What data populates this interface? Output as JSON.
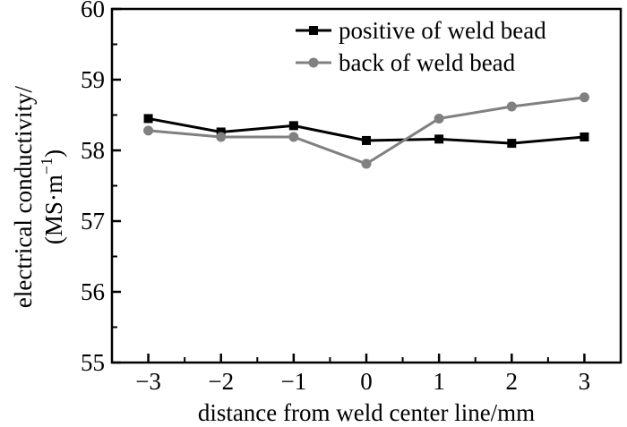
{
  "chart_data": {
    "type": "line",
    "x": [
      -3,
      -2,
      -1,
      0,
      1,
      2,
      3
    ],
    "x_tick_labels": [
      "−3",
      "−2",
      "−1",
      "0",
      "1",
      "2",
      "3"
    ],
    "y_ticks": [
      55,
      56,
      57,
      58,
      59,
      60
    ],
    "y_tick_labels": [
      "55",
      "56",
      "57",
      "58",
      "59",
      "60"
    ],
    "xlim": [
      -3.5,
      3.5
    ],
    "ylim": [
      55,
      60
    ],
    "xlabel": "distance from weld center line/mm",
    "ylabel_line1": "electrical conductivity/",
    "ylabel_line2_main": "(MS·m",
    "ylabel_line2_sup": "−1",
    "ylabel_line2_end": ")",
    "grid": false,
    "legend_position": "top-right",
    "series": [
      {
        "name": "positive of weld bead",
        "color": "#000000",
        "marker": "square",
        "values": [
          58.45,
          58.26,
          58.35,
          58.14,
          58.16,
          58.1,
          58.19
        ]
      },
      {
        "name": "back of weld bead",
        "color": "#808080",
        "marker": "circle",
        "values": [
          58.28,
          58.19,
          58.19,
          57.81,
          58.45,
          58.62,
          58.75
        ]
      }
    ]
  }
}
